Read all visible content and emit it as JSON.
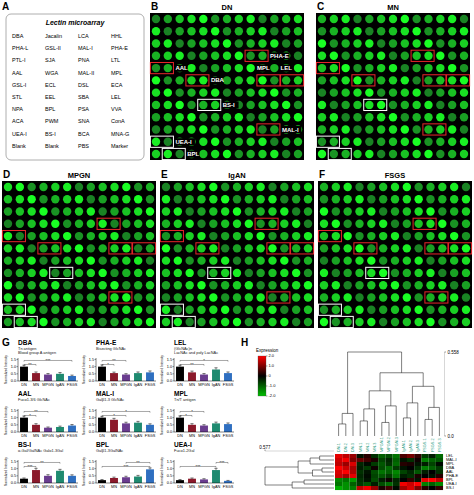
{
  "panel_a": {
    "letter": "A",
    "title": "Lectin microarray",
    "rows": [
      [
        "DBA",
        "Jacalin",
        "LCA",
        "HHL"
      ],
      [
        "PHA-L",
        "GSL-II",
        "MAL-I",
        "PHA-E"
      ],
      [
        "PTL-I",
        "SJA",
        "PNA",
        "LTL"
      ],
      [
        "AAL",
        "WGA",
        "MAL-II",
        "MPL"
      ],
      [
        "GSL-I",
        "ECL",
        "DSL",
        "ECA"
      ],
      [
        "STL",
        "EEL",
        "SBA",
        "LEL"
      ],
      [
        "NPA",
        "BPL",
        "PSA",
        "VVA"
      ],
      [
        "ACA",
        "PWM",
        "SNA",
        "ConA"
      ],
      [
        "UEA-I",
        "BS-I",
        "BCA",
        "MNA-G"
      ],
      [
        "Blank",
        "Blank",
        "PBS",
        "Marker"
      ]
    ]
  },
  "arrays": [
    {
      "letter": "B",
      "title": "DN",
      "labels": [
        "AAL",
        "DBA",
        "PHA-E",
        "MPL",
        "LEL",
        "BS-I",
        "MAL-I",
        "UEA-I",
        "BPL"
      ]
    },
    {
      "letter": "C",
      "title": "MN"
    },
    {
      "letter": "D",
      "title": "MPGN"
    },
    {
      "letter": "E",
      "title": "IgAN"
    },
    {
      "letter": "F",
      "title": "FSGS"
    }
  ],
  "panel_g_letter": "G",
  "panel_h_letter": "H",
  "chart_data": [
    {
      "type": "bar",
      "title": "DBA",
      "annotations": [
        "Tn antigen",
        "Blood group A antigen"
      ],
      "ylabel": "Normalized Intensity",
      "categories": [
        "DN",
        "MN",
        "MPGN",
        "IgAN",
        "FSGS"
      ],
      "values": [
        1.0,
        0.55,
        0.45,
        0.5,
        0.35
      ],
      "errors": [
        0.1,
        0.08,
        0.07,
        0.09,
        0.06
      ],
      "colors": [
        "#000000",
        "#8b1a2b",
        "#6a3d8f",
        "#1f8a70",
        "#2f6fc0"
      ],
      "ylim": [
        0,
        1.6
      ],
      "yticks": [
        {
          "value": 0,
          "label": "0.0"
        },
        {
          "value": 0.5,
          "label": "0.5"
        },
        {
          "value": 1,
          "label": "1.0"
        },
        {
          "value": 1.5,
          "label": "1.5"
        }
      ],
      "significance": [
        {
          "groups": [
            0,
            1
          ],
          "label": "**"
        },
        {
          "groups": [
            0,
            4
          ],
          "label": "***"
        }
      ]
    },
    {
      "type": "bar",
      "title": "PHA-E",
      "annotations": [
        "Bisecting GlcNAc"
      ],
      "ylabel": "Normalized Intensity",
      "categories": [
        "DN",
        "MN",
        "MPGN",
        "IgAN",
        "FSGS"
      ],
      "values": [
        1.0,
        0.55,
        0.45,
        0.55,
        0.6
      ],
      "errors": [
        0.12,
        0.07,
        0.06,
        0.08,
        0.1
      ],
      "colors": [
        "#000000",
        "#8b1a2b",
        "#6a3d8f",
        "#1f8a70",
        "#2f6fc0"
      ],
      "ylim": [
        0,
        1.6
      ],
      "yticks": [
        {
          "value": 0,
          "label": "0.0"
        },
        {
          "value": 0.5,
          "label": "0.5"
        },
        {
          "value": 1,
          "label": "1.0"
        },
        {
          "value": 1.5,
          "label": "1.5"
        }
      ],
      "significance": [
        {
          "groups": [
            0,
            1
          ],
          "label": "*"
        },
        {
          "groups": [
            0,
            2
          ],
          "label": "**"
        }
      ]
    },
    {
      "type": "bar",
      "title": "LEL",
      "annotations": [
        "(GlcNAc)n",
        "LacNAc and poly LacNAc"
      ],
      "ylabel": "Normalized Intensity",
      "categories": [
        "DN",
        "MN",
        "MPGN",
        "IgAN",
        "FSGS"
      ],
      "values": [
        1.0,
        0.6,
        0.45,
        0.8,
        0.55
      ],
      "errors": [
        0.1,
        0.09,
        0.07,
        0.12,
        0.08
      ],
      "colors": [
        "#000000",
        "#8b1a2b",
        "#6a3d8f",
        "#1f8a70",
        "#2f6fc0"
      ],
      "ylim": [
        0,
        1.6
      ],
      "yticks": [
        {
          "value": 0,
          "label": "0.0"
        },
        {
          "value": 0.5,
          "label": "0.5"
        },
        {
          "value": 1,
          "label": "1.0"
        },
        {
          "value": 1.5,
          "label": "1.5"
        }
      ],
      "significance": [
        {
          "groups": [
            0,
            2
          ],
          "label": "**"
        },
        {
          "groups": [
            0,
            4
          ],
          "label": "*"
        }
      ]
    },
    {
      "type": "bar",
      "title": "AAL",
      "annotations": [
        "Fucα1-3/6 GlcNAc"
      ],
      "ylabel": "Normalized Intensity",
      "categories": [
        "DN",
        "MN",
        "MPGN",
        "IgAN",
        "FSGS"
      ],
      "values": [
        1.0,
        0.5,
        0.3,
        0.35,
        0.45
      ],
      "errors": [
        0.11,
        0.08,
        0.05,
        0.06,
        0.07
      ],
      "colors": [
        "#000000",
        "#8b1a2b",
        "#6a3d8f",
        "#1f8a70",
        "#2f6fc0"
      ],
      "ylim": [
        0,
        1.6
      ],
      "yticks": [
        {
          "value": 0,
          "label": "0.0"
        },
        {
          "value": 0.5,
          "label": "0.5"
        },
        {
          "value": 1,
          "label": "1.0"
        },
        {
          "value": 1.5,
          "label": "1.5"
        }
      ],
      "significance": [
        {
          "groups": [
            0,
            1
          ],
          "label": "*"
        },
        {
          "groups": [
            0,
            2
          ],
          "label": "**"
        }
      ]
    },
    {
      "type": "bar",
      "title": "MAL-I",
      "annotations": [
        "Galβ1-3 GlcNAc"
      ],
      "ylabel": "Normalized Intensity",
      "categories": [
        "DN",
        "MN",
        "MPGN",
        "IgAN",
        "FSGS"
      ],
      "values": [
        1.0,
        0.85,
        0.6,
        0.65,
        0.5
      ],
      "errors": [
        0.09,
        0.1,
        0.08,
        0.09,
        0.07
      ],
      "colors": [
        "#000000",
        "#8b1a2b",
        "#6a3d8f",
        "#1f8a70",
        "#2f6fc0"
      ],
      "ylim": [
        0,
        1.6
      ],
      "yticks": [
        {
          "value": 0,
          "label": "0.0"
        },
        {
          "value": 0.5,
          "label": "0.5"
        },
        {
          "value": 1,
          "label": "1.0"
        },
        {
          "value": 1.5,
          "label": "1.5"
        }
      ],
      "significance": [
        {
          "groups": [
            0,
            2
          ],
          "label": "*"
        },
        {
          "groups": [
            0,
            4
          ],
          "label": "*"
        }
      ]
    },
    {
      "type": "bar",
      "title": "MPL",
      "annotations": [
        "Tn/T antigen"
      ],
      "ylabel": "Normalized Intensity",
      "categories": [
        "DN",
        "MN",
        "MPGN",
        "IgAN",
        "FSGS"
      ],
      "values": [
        1.0,
        0.5,
        0.45,
        0.6,
        0.55
      ],
      "errors": [
        0.12,
        0.08,
        0.06,
        0.09,
        0.08
      ],
      "colors": [
        "#000000",
        "#8b1a2b",
        "#6a3d8f",
        "#1f8a70",
        "#2f6fc0"
      ],
      "ylim": [
        0,
        1.6
      ],
      "yticks": [
        {
          "value": 0,
          "label": "0.0"
        },
        {
          "value": 0.5,
          "label": "0.5"
        },
        {
          "value": 1,
          "label": "1.0"
        },
        {
          "value": 1.5,
          "label": "1.5"
        }
      ],
      "significance": [
        {
          "groups": [
            0,
            1
          ],
          "label": "*"
        },
        {
          "groups": [
            0,
            2
          ],
          "label": "*"
        }
      ]
    },
    {
      "type": "bar",
      "title": "BS-I",
      "annotations": [
        "α-Gal/GalNAc Galα1-3Gal"
      ],
      "ylabel": "Normalized Intensity",
      "categories": [
        "DN",
        "MN",
        "MPGN",
        "IgAN",
        "FSGS"
      ],
      "values": [
        0.3,
        0.9,
        0.5,
        0.85,
        0.5
      ],
      "errors": [
        0.05,
        0.12,
        0.08,
        0.1,
        0.07
      ],
      "colors": [
        "#000000",
        "#8b1a2b",
        "#6a3d8f",
        "#1f8a70",
        "#2f6fc0"
      ],
      "ylim": [
        0,
        1.6
      ],
      "yticks": [
        {
          "value": 0,
          "label": "0.0"
        },
        {
          "value": 0.5,
          "label": "0.5"
        },
        {
          "value": 1,
          "label": "1.0"
        },
        {
          "value": 1.5,
          "label": "1.5"
        }
      ],
      "significance": [
        {
          "groups": [
            0,
            1
          ],
          "label": "***"
        },
        {
          "groups": [
            0,
            3
          ],
          "label": "**"
        }
      ]
    },
    {
      "type": "bar",
      "title": "BPL",
      "annotations": [
        "Galβ1-3GalNAc"
      ],
      "ylabel": "Normalized Intensity",
      "categories": [
        "DN",
        "MN",
        "MPGN",
        "IgAN",
        "FSGS"
      ],
      "values": [
        0.2,
        0.35,
        0.4,
        0.45,
        0.95
      ],
      "errors": [
        0.04,
        0.06,
        0.07,
        0.08,
        0.1
      ],
      "colors": [
        "#000000",
        "#8b1a2b",
        "#6a3d8f",
        "#1f8a70",
        "#2f6fc0"
      ],
      "ylim": [
        0,
        1.6
      ],
      "yticks": [
        {
          "value": 0,
          "label": "0.0"
        },
        {
          "value": 0.5,
          "label": "0.5"
        },
        {
          "value": 1,
          "label": "1.0"
        },
        {
          "value": 1.5,
          "label": "1.5"
        }
      ],
      "significance": [
        {
          "groups": [
            0,
            4
          ],
          "label": "***"
        },
        {
          "groups": [
            2,
            4
          ],
          "label": "**"
        }
      ]
    },
    {
      "type": "bar",
      "title": "UEA-I",
      "annotations": [
        "Fucα1-2Gal"
      ],
      "ylabel": "Normalized Intensity",
      "categories": [
        "DN",
        "MN",
        "MPGN",
        "IgAN",
        "FSGS"
      ],
      "values": [
        0.2,
        0.3,
        0.25,
        0.9,
        0.15
      ],
      "errors": [
        0.04,
        0.05,
        0.05,
        0.12,
        0.03
      ],
      "colors": [
        "#000000",
        "#8b1a2b",
        "#6a3d8f",
        "#1f8a70",
        "#2f6fc0"
      ],
      "ylim": [
        0,
        1.6
      ],
      "yticks": [
        {
          "value": 0,
          "label": "0.0"
        },
        {
          "value": 0.5,
          "label": "0.5"
        },
        {
          "value": 1,
          "label": "1.0"
        },
        {
          "value": 1.5,
          "label": "1.5"
        }
      ],
      "significance": [
        {
          "groups": [
            0,
            3
          ],
          "label": "***"
        },
        {
          "groups": [
            3,
            4
          ],
          "label": "***"
        }
      ]
    },
    {
      "type": "heatmap",
      "rows": [
        "LEL",
        "MAL-I",
        "MPL",
        "DBA",
        "AAL",
        "PHA-E",
        "BPL",
        "UEA-I",
        "BS-I"
      ],
      "columns": [
        "DN-1",
        "DN-2",
        "DN-3",
        "MN-1",
        "MN-2",
        "MN-3",
        "MPGN-1",
        "MPGN-2",
        "MPGN-3",
        "IgAN-1",
        "IgAN-2",
        "IgAN-3",
        "FSGS-1",
        "FSGS-2",
        "FSGS-3"
      ],
      "cells": [
        [
          1.8,
          1.5,
          1.2,
          -0.2,
          0.3,
          -0.5,
          -1.0,
          -0.8,
          -1.2,
          0.6,
          0.9,
          0.4,
          -0.6,
          -0.3,
          -1.1
        ],
        [
          1.6,
          1.9,
          1.0,
          0.8,
          0.5,
          0.2,
          -0.7,
          -0.4,
          -1.0,
          -0.2,
          -0.5,
          0.1,
          -1.3,
          -1.0,
          -0.9
        ],
        [
          1.5,
          1.2,
          1.7,
          -0.4,
          -0.1,
          -0.6,
          -0.9,
          -0.5,
          -1.1,
          0.3,
          0.2,
          -0.2,
          -0.3,
          -0.7,
          -0.1
        ],
        [
          2.0,
          1.6,
          1.3,
          -0.3,
          -0.6,
          0.1,
          -0.8,
          -1.1,
          -0.6,
          -0.2,
          0.0,
          -0.5,
          -1.3,
          -1.0,
          -0.6
        ],
        [
          1.7,
          2.0,
          1.4,
          -0.5,
          -0.2,
          -0.8,
          -1.2,
          -1.0,
          -1.4,
          -0.7,
          -0.4,
          -0.9,
          -0.3,
          0.0,
          -0.5
        ],
        [
          1.6,
          1.3,
          1.8,
          -0.4,
          -0.1,
          -0.7,
          -0.9,
          -0.6,
          -1.2,
          -0.3,
          -0.5,
          0.2,
          0.0,
          -0.2,
          0.3
        ],
        [
          -1.4,
          -1.2,
          -1.6,
          -0.5,
          -0.2,
          -0.8,
          -0.3,
          0.1,
          -0.4,
          0.0,
          0.4,
          -0.2,
          1.8,
          2.0,
          1.5
        ],
        [
          -1.2,
          -1.5,
          -1.0,
          -0.6,
          -0.9,
          -0.3,
          -0.8,
          -1.1,
          -0.5,
          1.9,
          1.6,
          2.0,
          -1.3,
          -1.0,
          -1.4
        ],
        [
          -1.8,
          -1.5,
          -1.3,
          1.5,
          1.9,
          1.2,
          0.2,
          0.5,
          -0.1,
          1.3,
          1.7,
          1.0,
          0.3,
          0.0,
          0.4
        ]
      ],
      "colorbar": {
        "title": "Expression",
        "range": [
          -2,
          2
        ],
        "ticks": [
          {
            "value": 2,
            "label": "2.0"
          },
          {
            "value": 1,
            "label": "1.0"
          },
          0,
          {
            "value": -1,
            "label": "-1.0"
          },
          {
            "value": -2,
            "label": "-2.0"
          }
        ],
        "colors": [
          "#00c000",
          "#000000",
          "#ff0000"
        ]
      },
      "column_dendrogram": {
        "merges": [
          [
            0,
            1,
            0.08
          ],
          [
            15,
            2,
            0.15
          ],
          [
            3,
            4,
            0.1
          ],
          [
            17,
            5,
            0.18
          ],
          [
            6,
            7,
            0.09
          ],
          [
            19,
            8,
            0.2
          ],
          [
            9,
            10,
            0.12
          ],
          [
            21,
            11,
            0.22
          ],
          [
            12,
            13,
            0.11
          ],
          [
            23,
            14,
            0.19
          ],
          [
            18,
            20,
            0.3
          ],
          [
            22,
            24,
            0.33
          ],
          [
            25,
            26,
            0.42
          ],
          [
            16,
            27,
            0.558
          ]
        ],
        "ylim": [
          0,
          0.558
        ],
        "ticks": [
          {
            "value": 0,
            "label": "0.0"
          },
          0.558
        ]
      },
      "row_dendrogram": {
        "merges": [
          [
            0,
            1,
            0.12
          ],
          [
            9,
            2,
            0.2
          ],
          [
            3,
            4,
            0.1
          ],
          [
            11,
            5,
            0.18
          ],
          [
            10,
            12,
            0.3
          ],
          [
            6,
            7,
            0.25
          ],
          [
            14,
            8,
            0.35
          ],
          [
            13,
            15,
            0.577
          ]
        ],
        "xlim": [
          0,
          0.577
        ],
        "ticks": [
          0.577
        ]
      }
    }
  ]
}
